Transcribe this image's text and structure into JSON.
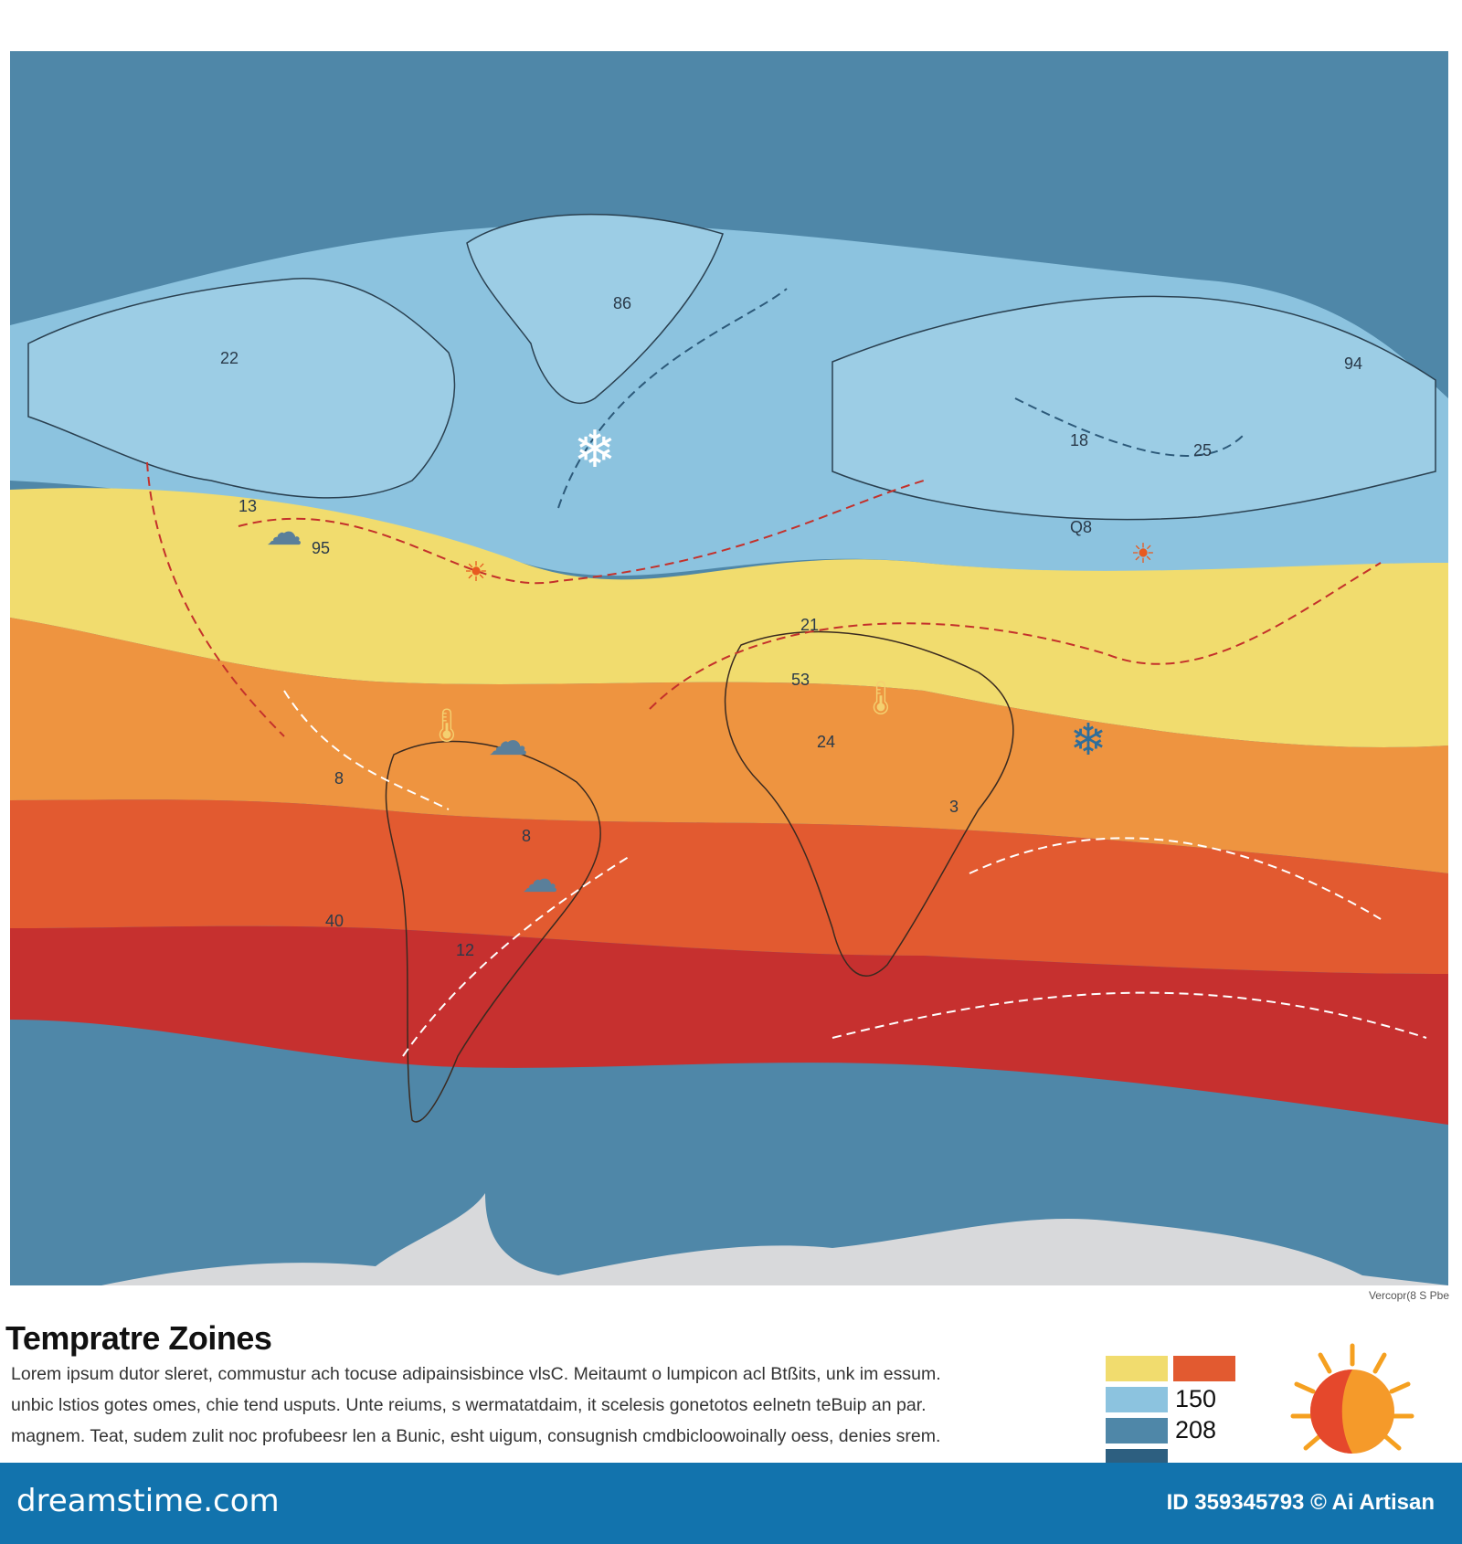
{
  "colors": {
    "ocean": "#4f87a8",
    "cold_zone": "#8cc3df",
    "temperate_zone": "#f1dc6e",
    "warm_zone": "#ee9440",
    "hot_zone": "#e25a30",
    "very_hot_zone": "#c6302f",
    "antarctica": "#d8d9db",
    "footer": "#1273ad"
  },
  "map": {
    "labels": [
      "86",
      "22",
      "18",
      "25",
      "94",
      "13",
      "95",
      "Q8",
      "21",
      "53",
      "24",
      "8",
      "3",
      "40",
      "12",
      "8"
    ],
    "icons": [
      "snowflake-icon",
      "snowflake-icon",
      "cloud-rain-icon",
      "sun-icon",
      "thermometer-icon"
    ]
  },
  "credit_small": "Vercopr(8 S Pbe",
  "title": "Tempratre Zoines",
  "paragraph": [
    "Lorem ipsum dutor sleret, commustur ach tocuse adipainsisbince vlsC. Meitaumt o lumpicon acl Btßits, unk im essum.",
    "unbic lstios gotes omes, chie  tend usputs. Unte reiums, s wermatatdaim, it scelesis gonetotos eelnetn teBuip an par.",
    "magnem. Teat, sudem zulit noc profubeesr len a Bunic, esht uigum, consugnish  cmdbicloowoinally oess, denies srem."
  ],
  "legend": {
    "values": [
      "150",
      "208"
    ]
  },
  "footer": {
    "brand": "dreamstime.com",
    "image_id": "ID 359345793 © Ai Artisan"
  }
}
